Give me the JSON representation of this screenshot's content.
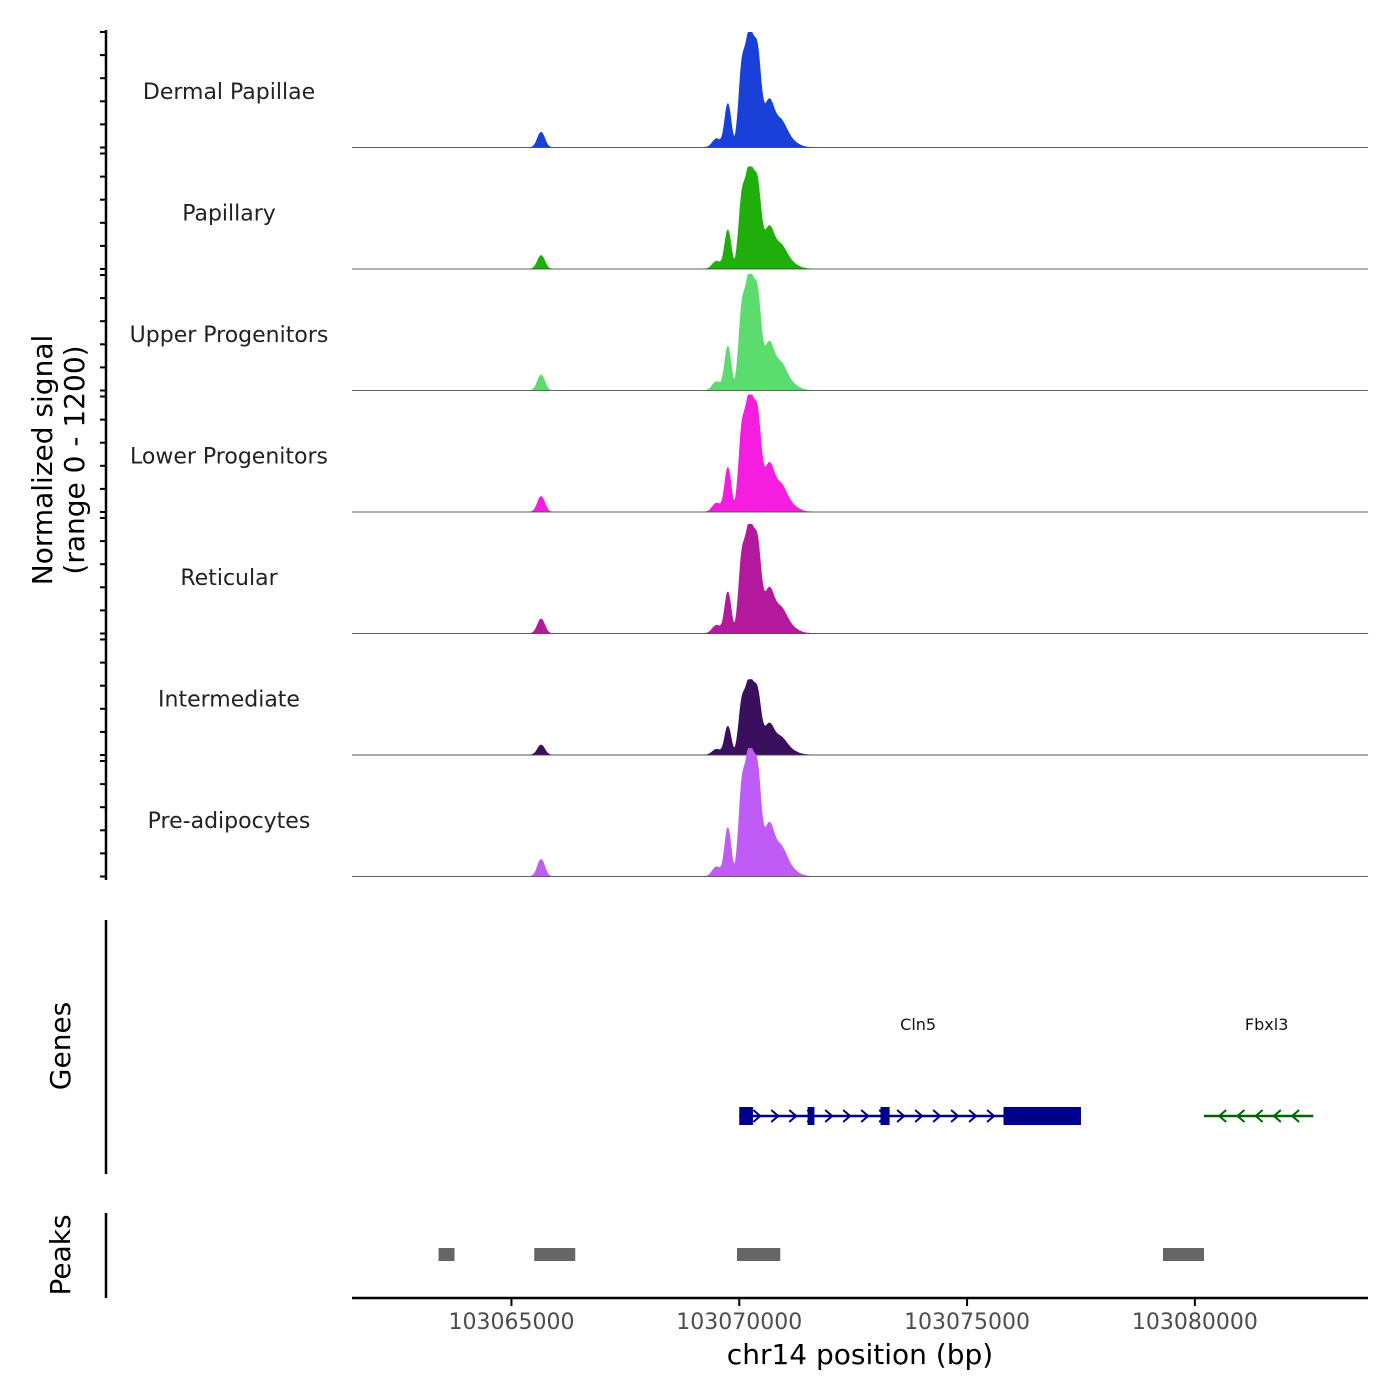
{
  "chart_data": {
    "type": "area",
    "title": "",
    "ylabel_line1": "Normalized signal",
    "ylabel_line2": "(range 0 - 1200)",
    "xlabel": "chr14 position (bp)",
    "chromosome": "chr14",
    "xlim": [
      103061500,
      103083800
    ],
    "ylim": [
      0,
      1200
    ],
    "x_ticks": [
      {
        "value": 103065000,
        "label": "103065000"
      },
      {
        "value": 103070000,
        "label": "103070000"
      },
      {
        "value": 103075000,
        "label": "103075000"
      },
      {
        "value": 103080000,
        "label": "103080000"
      }
    ],
    "peak_profile": [
      {
        "pos": 103065650,
        "rel": 0.14,
        "width": 80
      },
      {
        "pos": 103069500,
        "rel": 0.08,
        "width": 90
      },
      {
        "pos": 103069750,
        "rel": 0.4,
        "width": 70
      },
      {
        "pos": 103070050,
        "rel": 0.62,
        "width": 70
      },
      {
        "pos": 103070220,
        "rel": 1.0,
        "width": 90
      },
      {
        "pos": 103070400,
        "rel": 0.78,
        "width": 80
      },
      {
        "pos": 103070650,
        "rel": 0.4,
        "width": 110
      },
      {
        "pos": 103070900,
        "rel": 0.15,
        "width": 120
      },
      {
        "pos": 103071000,
        "rel": 0.1,
        "width": 200
      }
    ],
    "series": [
      {
        "name": "Dermal Papillae",
        "color": "#1940d8",
        "max": 1160
      },
      {
        "name": "Papillary",
        "color": "#20ae0c",
        "max": 1030
      },
      {
        "name": "Upper Progenitors",
        "color": "#5cdb6e",
        "max": 1170
      },
      {
        "name": "Lower Progenitors",
        "color": "#f51ee0",
        "max": 1180
      },
      {
        "name": "Reticular",
        "color": "#b3189d",
        "max": 1100
      },
      {
        "name": "Intermediate",
        "color": "#3a0f5e",
        "max": 760
      },
      {
        "name": "Pre-adipocytes",
        "color": "#bf5cf5",
        "max": 1290
      }
    ],
    "genes_label": "Genes",
    "genes": [
      {
        "name": "Cln5",
        "strand": "+",
        "color": "#00008b",
        "start": 103070000,
        "end": 103077500,
        "exons": [
          [
            103070000,
            103070300
          ],
          [
            103071500,
            103071650
          ],
          [
            103073100,
            103073300
          ],
          [
            103075800,
            103077500
          ]
        ]
      },
      {
        "name": "Fbxl3",
        "strand": "-",
        "color": "#006400",
        "start": 103080200,
        "end": 103082600,
        "exons": []
      }
    ],
    "peaks_label": "Peaks",
    "peaks_color": "#666666",
    "peaks": [
      [
        103063400,
        103063750
      ],
      [
        103065500,
        103066400
      ],
      [
        103069950,
        103070900
      ],
      [
        103079300,
        103080200
      ]
    ]
  }
}
